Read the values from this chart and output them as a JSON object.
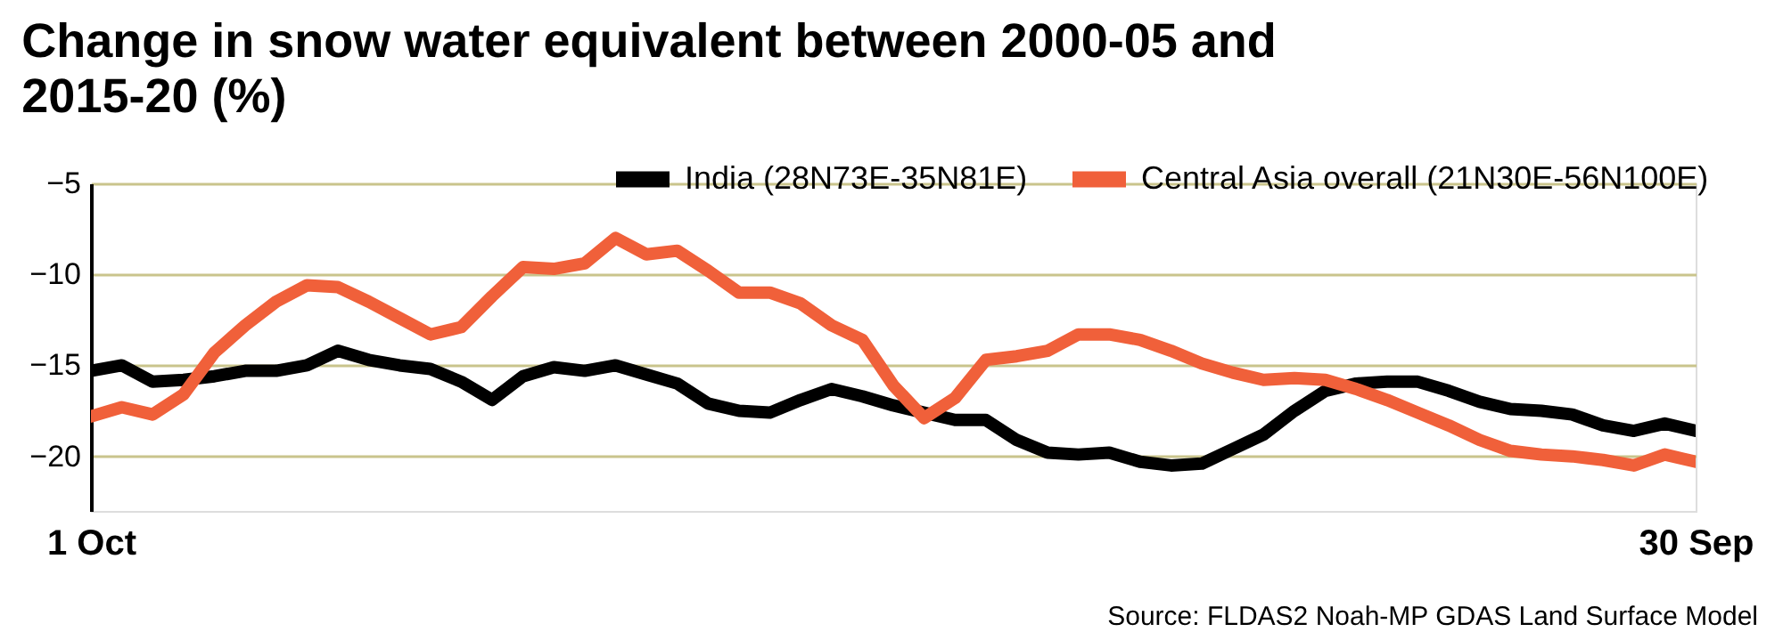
{
  "chart_data": {
    "type": "line",
    "title": "Change in snow water equivalent between 2000-05 and 2015-20 (%)",
    "categories": [
      "1 Oct",
      null,
      null,
      null,
      null,
      null,
      null,
      null,
      null,
      null,
      null,
      null,
      null,
      null,
      null,
      null,
      null,
      null,
      null,
      null,
      null,
      null,
      null,
      null,
      null,
      null,
      null,
      null,
      null,
      null,
      null,
      null,
      null,
      null,
      null,
      null,
      null,
      null,
      null,
      null,
      null,
      null,
      null,
      null,
      null,
      null,
      null,
      null,
      null,
      null,
      null,
      null,
      "30 Sep"
    ],
    "ylim": [
      -23,
      -5
    ],
    "yticks": [
      -5,
      -10,
      -15,
      -20
    ],
    "grid": "y",
    "legend": "top right",
    "line_style": "solid",
    "marker": "none",
    "annotations": [
      "Source: FLDAS2 Noah-MP GDAS Land Surface Model"
    ],
    "series": [
      {
        "name": "India (28N73E-35N81E)",
        "color": "#000000",
        "values": [
          -15.3,
          -15.0,
          -15.9,
          -15.8,
          -15.6,
          -15.3,
          -15.3,
          -15.0,
          -14.2,
          -14.7,
          -15.0,
          -15.2,
          -15.9,
          -16.9,
          -15.6,
          -15.1,
          -15.3,
          -15.0,
          -15.5,
          -16.0,
          -17.1,
          -17.5,
          -17.6,
          -16.9,
          -16.3,
          -16.7,
          -17.2,
          -17.6,
          -18.0,
          -18.0,
          -19.1,
          -19.8,
          -19.9,
          -19.8,
          -20.3,
          -20.5,
          -20.4,
          -19.6,
          -18.8,
          -17.5,
          -16.4,
          -16.0,
          -15.9,
          -15.9,
          -16.4,
          -17.0,
          -17.4,
          -17.5,
          -17.7,
          -18.3,
          -18.6,
          -18.2,
          -18.6
        ]
      },
      {
        "name": "Central Asia overall (21N30E-56N100E)",
        "color": "#f0603a",
        "values": [
          -17.8,
          -17.3,
          -17.7,
          -16.6,
          -14.3,
          -12.8,
          -11.5,
          -10.6,
          -10.7,
          -11.5,
          -12.4,
          -13.3,
          -12.9,
          -11.2,
          -9.6,
          -9.7,
          -9.4,
          -8.0,
          -8.9,
          -8.7,
          -9.8,
          -11.0,
          -11.0,
          -11.6,
          -12.8,
          -13.6,
          -16.1,
          -17.9,
          -16.8,
          -14.7,
          -14.5,
          -14.2,
          -13.3,
          -13.3,
          -13.6,
          -14.2,
          -14.9,
          -15.4,
          -15.8,
          -15.7,
          -15.8,
          -16.3,
          -16.9,
          -17.6,
          -18.3,
          -19.1,
          -19.7,
          -19.9,
          -20.0,
          -20.2,
          -20.5,
          -19.9,
          -20.3
        ]
      }
    ]
  }
}
